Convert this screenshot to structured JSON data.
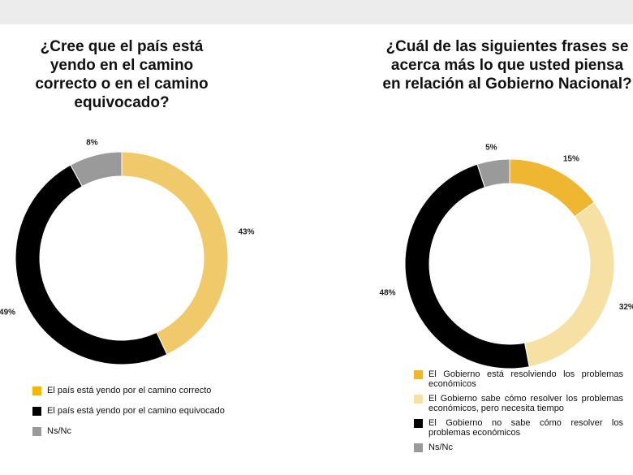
{
  "chart_data": [
    {
      "type": "pie",
      "title": "¿Cree que el país está yendo en el camino correcto o en el camino equivocado?",
      "categories": [
        "El país está yendo por el camino correcto",
        "El país está yendo por el camino equivocado",
        "Ns/Nc"
      ],
      "values": [
        43,
        49,
        8
      ],
      "value_labels": [
        "43%",
        "49%",
        "8%"
      ],
      "colors": [
        "#efc96a",
        "#000000",
        "#9a9a9a"
      ],
      "legend_colors": [
        "#f4b800",
        "#000000",
        "#9a9a9a"
      ]
    },
    {
      "type": "pie",
      "title": "¿Cuál de las siguientes frases se acerca más lo que usted piensa en relación al Gobierno Nacional?",
      "categories": [
        "El Gobierno está resolviendo los problemas económicos",
        "El Gobierno sabe cómo resolver los problemas económicos, pero necesita tiempo",
        "El Gobierno no sabe cómo resolver los problemas económicos",
        "Ns/Nc"
      ],
      "values": [
        15,
        32,
        48,
        5
      ],
      "value_labels": [
        "15%",
        "32%",
        "48%",
        "5%"
      ],
      "colors": [
        "#efb731",
        "#f7e0a3",
        "#000000",
        "#9a9a9a"
      ],
      "legend_colors": [
        "#efb731",
        "#f7e0a3",
        "#000000",
        "#9a9a9a"
      ]
    }
  ]
}
